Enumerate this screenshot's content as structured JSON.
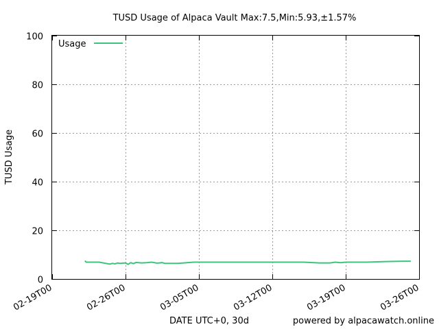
{
  "chart_data": {
    "type": "line",
    "title": "TUSD Usage of Alpaca Vault Max:7.5,Min:5.93,±1.57%",
    "xlabel": "DATE UTC+0, 30d",
    "ylabel": "TUSD Usage",
    "footer": "powered by alpacawatch.online",
    "ylim": [
      0,
      100
    ],
    "xlim": [
      "2022-02-19",
      "2022-03-26"
    ],
    "yticks": [
      0,
      20,
      40,
      60,
      80,
      100
    ],
    "xticks": [
      "02-19T00",
      "02-26T00",
      "03-05T00",
      "03-12T00",
      "03-19T00",
      "03-26T00"
    ],
    "grid": true,
    "legend_position": "top-left",
    "color": "#3cc47c",
    "series": [
      {
        "name": "Usage",
        "x": [
          "2022-02-22T03",
          "2022-02-22T06",
          "2022-02-23T12",
          "2022-02-24T12",
          "2022-02-24T18",
          "2022-02-25T00",
          "2022-02-25T06",
          "2022-02-25T12",
          "2022-02-25T18",
          "2022-02-26T00",
          "2022-02-26T06",
          "2022-02-26T12",
          "2022-02-26T18",
          "2022-02-27T00",
          "2022-02-27T12",
          "2022-02-28T00",
          "2022-02-28T12",
          "2022-03-01T00",
          "2022-03-01T12",
          "2022-03-01T18",
          "2022-03-02T00",
          "2022-03-02T12",
          "2022-03-03T00",
          "2022-03-04T12",
          "2022-03-05T12",
          "2022-03-07T00",
          "2022-03-09T00",
          "2022-03-11T00",
          "2022-03-13T00",
          "2022-03-15T00",
          "2022-03-16T12",
          "2022-03-17T12",
          "2022-03-18T00",
          "2022-03-18T12",
          "2022-03-19T00",
          "2022-03-20T00",
          "2022-03-21T00",
          "2022-03-22T12",
          "2022-03-23T12",
          "2022-03-24T12",
          "2022-03-25T05"
        ],
        "values": [
          7.5,
          6.9,
          6.9,
          6.1,
          6.4,
          6.2,
          6.6,
          6.4,
          6.5,
          6.6,
          6.0,
          6.7,
          6.3,
          6.8,
          6.6,
          6.7,
          6.9,
          6.5,
          6.7,
          6.4,
          6.4,
          6.4,
          6.4,
          6.9,
          6.9,
          6.9,
          6.9,
          6.9,
          6.9,
          6.9,
          6.6,
          6.6,
          6.9,
          6.7,
          6.9,
          6.9,
          6.9,
          7.1,
          7.2,
          7.3,
          7.3
        ]
      }
    ]
  }
}
